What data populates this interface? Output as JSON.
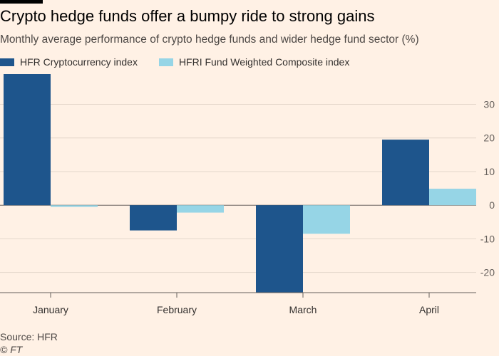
{
  "header": {
    "title": "Crypto hedge funds offer a bumpy ride to strong gains",
    "subtitle": "Monthly average performance of crypto hedge funds and wider hedge fund sector (%)"
  },
  "footer": {
    "source": "Source: HFR",
    "copyright": "© FT"
  },
  "chart_data": {
    "type": "bar",
    "title": "Crypto hedge funds offer a bumpy ride to strong gains",
    "subtitle": "Monthly average performance of crypto hedge funds and wider hedge fund sector (%)",
    "xlabel": "",
    "ylabel": "",
    "categories": [
      "January",
      "February",
      "March",
      "April"
    ],
    "series": [
      {
        "name": "HFR Cryptocurrency index",
        "color": "#1e558c",
        "values": [
          39,
          -7.5,
          -26,
          19.5
        ]
      },
      {
        "name": "HFRI Fund Weighted Composite index",
        "color": "#96d5e6",
        "values": [
          -0.5,
          -2.2,
          -8.5,
          4.9
        ]
      }
    ],
    "ylim": [
      -26,
      39
    ],
    "yticks": [
      30,
      20,
      10,
      0,
      -10,
      -20
    ],
    "ytick_labels": [
      "30",
      "20",
      "10",
      "0",
      "-10",
      "-20"
    ],
    "grid": true,
    "legend_position": "top-left",
    "axis_side": "right"
  }
}
